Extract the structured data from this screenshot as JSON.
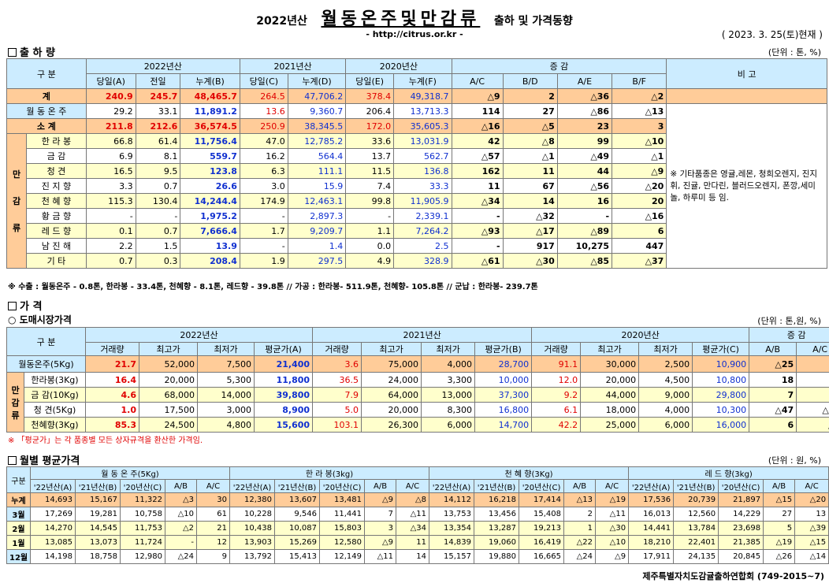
{
  "header": {
    "year": "2022년산",
    "main": "월동온주및만감류",
    "sub": "출하 및 가격동향",
    "url": "- http://citrus.or.kr -",
    "date": "( 2023. 3. 25(토)현재 )"
  },
  "s1": {
    "title": "출 하 량",
    "unit": "(단위 : 톤, %)",
    "h": {
      "cat": "구  분",
      "g22": "2022년산",
      "g21": "2021년산",
      "g20": "2020년산",
      "inc": "증  감",
      "remark": "비 고",
      "c": [
        "당일(A)",
        "전일",
        "누계(B)",
        "당일(C)",
        "누계(D)",
        "당일(E)",
        "누계(F)",
        "A/C",
        "B/D",
        "A/E",
        "B/F"
      ]
    },
    "rows": [
      {
        "name": "계",
        "v": [
          "240.9",
          "245.7",
          "48,465.7",
          "264.5",
          "47,706.2",
          "378.4",
          "49,318.7",
          "△9",
          "2",
          "△36",
          "△2"
        ]
      },
      {
        "name": "월 동 온 주",
        "v": [
          "29.2",
          "33.1",
          "11,891.2",
          "13.6",
          "9,360.7",
          "206.4",
          "13,713.3",
          "114",
          "27",
          "△86",
          "△13"
        ]
      },
      {
        "name": "소  계",
        "v": [
          "211.8",
          "212.6",
          "36,574.5",
          "250.9",
          "38,345.5",
          "172.0",
          "35,605.3",
          "△16",
          "△5",
          "23",
          "3"
        ]
      },
      {
        "name": "한 라 봉",
        "v": [
          "66.8",
          "61.4",
          "11,756.4",
          "47.0",
          "12,785.2",
          "33.6",
          "13,031.9",
          "42",
          "△8",
          "99",
          "△10"
        ]
      },
      {
        "name": "금  감",
        "v": [
          "6.9",
          "8.1",
          "559.7",
          "16.2",
          "564.4",
          "13.7",
          "562.7",
          "△57",
          "△1",
          "△49",
          "△1"
        ]
      },
      {
        "name": "청  견",
        "v": [
          "16.5",
          "9.5",
          "123.8",
          "6.3",
          "111.1",
          "11.5",
          "136.8",
          "162",
          "11",
          "44",
          "△9"
        ]
      },
      {
        "name": "진 지 향",
        "v": [
          "3.3",
          "0.7",
          "26.6",
          "3.0",
          "15.9",
          "7.4",
          "33.3",
          "11",
          "67",
          "△56",
          "△20"
        ]
      },
      {
        "name": "천 혜 향",
        "v": [
          "115.3",
          "130.4",
          "14,244.4",
          "174.9",
          "12,463.1",
          "99.8",
          "11,905.9",
          "△34",
          "14",
          "16",
          "20"
        ]
      },
      {
        "name": "황 금 향",
        "v": [
          "-",
          "-",
          "1,975.2",
          "-",
          "2,897.3",
          "-",
          "2,339.1",
          "-",
          "△32",
          "-",
          "△16"
        ]
      },
      {
        "name": "레 드 향",
        "v": [
          "0.1",
          "0.7",
          "7,666.4",
          "1.7",
          "9,209.7",
          "1.1",
          "7,264.2",
          "△93",
          "△17",
          "△89",
          "6"
        ]
      },
      {
        "name": "남 진 해",
        "v": [
          "2.2",
          "1.5",
          "13.9",
          "-",
          "1.4",
          "0.0",
          "2.5",
          "-",
          "917",
          "10,275",
          "447"
        ]
      },
      {
        "name": "기  타",
        "v": [
          "0.7",
          "0.3",
          "208.4",
          "1.9",
          "297.5",
          "4.9",
          "328.9",
          "△61",
          "△30",
          "△85",
          "△37"
        ]
      }
    ],
    "mangam": [
      "만",
      "감",
      "류"
    ],
    "remark": "※ 기타품종은 영귤,레몬, 청희오렌지, 진지휘, 진귤, 만다린, 블러드오렌지, 폰깡,세미놀, 하루미 등 임.",
    "note": "※ 수출 : 월동온주 - 0.8톤, 한라봉 - 33.4톤, 천혜향 - 8.1톤, 레드향 - 39.8톤  //  가공  :  한라봉- 511.9톤, 천혜향- 105.8톤  //  군납 : 한라봉- 239.7톤"
  },
  "s2": {
    "title": "가      격",
    "subtitle": "○ 도매시장가격",
    "unit": "(단위 : 톤,원, %)",
    "h": {
      "cat": "구  분",
      "g22": "2022년산",
      "g21": "2021년산",
      "g20": "2020년산",
      "inc": "증  감",
      "c": [
        "거래량",
        "최고가",
        "최저가",
        "평균가(A)",
        "거래량",
        "최고가",
        "최저가",
        "평균가(B)",
        "거래량",
        "최고가",
        "최저가",
        "평균가(C)",
        "A/B",
        "A/C"
      ]
    },
    "rows": [
      {
        "name": "월동온주(5Kg)",
        "v": [
          "21.7",
          "52,000",
          "7,500",
          "21,400",
          "3.6",
          "75,000",
          "4,000",
          "28,700",
          "91.1",
          "30,000",
          "2,500",
          "10,900",
          "△25",
          "96"
        ]
      },
      {
        "name": "한라봉(3Kg)",
        "v": [
          "16.4",
          "20,000",
          "5,300",
          "11,800",
          "36.5",
          "24,000",
          "3,300",
          "10,000",
          "12.0",
          "20,000",
          "4,500",
          "10,800",
          "18",
          "9"
        ]
      },
      {
        "name": "금 감(10Kg)",
        "v": [
          "4.6",
          "68,000",
          "14,000",
          "39,800",
          "7.9",
          "64,000",
          "13,000",
          "37,300",
          "9.2",
          "44,000",
          "9,000",
          "29,800",
          "7",
          "34"
        ]
      },
      {
        "name": "청  견(5Kg)",
        "v": [
          "1.0",
          "17,500",
          "3,000",
          "8,900",
          "5.0",
          "20,000",
          "8,300",
          "16,800",
          "6.1",
          "18,000",
          "4,000",
          "10,300",
          "△47",
          "△14"
        ]
      },
      {
        "name": "천혜향(3Kg)",
        "v": [
          "85.3",
          "24,500",
          "4,800",
          "15,600",
          "103.1",
          "26,300",
          "6,000",
          "14,700",
          "42.2",
          "25,000",
          "6,000",
          "16,000",
          "6",
          "△3"
        ]
      }
    ],
    "mangam": [
      "만",
      "감",
      "류"
    ],
    "note": "※ 「평균가」는 각 품종별 모든 상자규격을 환산한 가격임."
  },
  "s3": {
    "title": "월별 평균가격",
    "unit": "(단위 : 원, %)",
    "h": {
      "cat": "구분",
      "groups": [
        "월 동 온 주(5Kg)",
        "한 라 봉(3kg)",
        "천 혜 향(3Kg)",
        "레 드 향(3kg)"
      ],
      "c": [
        "'22년산(A)",
        "'21년산(B)",
        "'20년산(C)",
        "A/B",
        "A/C"
      ]
    },
    "rows": [
      {
        "name": "누계",
        "v": [
          "14,693",
          "15,167",
          "11,322",
          "△3",
          "30",
          "12,380",
          "13,607",
          "13,481",
          "△9",
          "△8",
          "14,112",
          "16,218",
          "17,414",
          "△13",
          "△19",
          "17,536",
          "20,739",
          "21,897",
          "△15",
          "△20"
        ]
      },
      {
        "name": "3월",
        "v": [
          "17,269",
          "19,281",
          "10,758",
          "△10",
          "61",
          "10,228",
          "9,546",
          "11,441",
          "7",
          "△11",
          "13,753",
          "13,456",
          "15,408",
          "2",
          "△11",
          "16,013",
          "12,560",
          "14,229",
          "27",
          "13"
        ]
      },
      {
        "name": "2월",
        "v": [
          "14,270",
          "14,545",
          "11,753",
          "△2",
          "21",
          "10,438",
          "10,087",
          "15,803",
          "3",
          "△34",
          "13,354",
          "13,287",
          "19,213",
          "1",
          "△30",
          "14,441",
          "13,784",
          "23,698",
          "5",
          "△39"
        ]
      },
      {
        "name": "1월",
        "v": [
          "13,085",
          "13,073",
          "11,724",
          "-",
          "12",
          "13,903",
          "15,269",
          "12,580",
          "△9",
          "11",
          "14,839",
          "19,060",
          "16,419",
          "△22",
          "△10",
          "18,210",
          "22,401",
          "21,385",
          "△19",
          "△15"
        ]
      },
      {
        "name": "12월",
        "v": [
          "14,198",
          "18,758",
          "12,980",
          "△24",
          "9",
          "13,792",
          "15,413",
          "12,149",
          "△11",
          "14",
          "15,157",
          "19,880",
          "16,665",
          "△24",
          "△9",
          "17,911",
          "24,135",
          "20,845",
          "△26",
          "△14"
        ]
      }
    ]
  },
  "footer": "제주특별자치도감귤출하연합회 (749-2015~7)"
}
